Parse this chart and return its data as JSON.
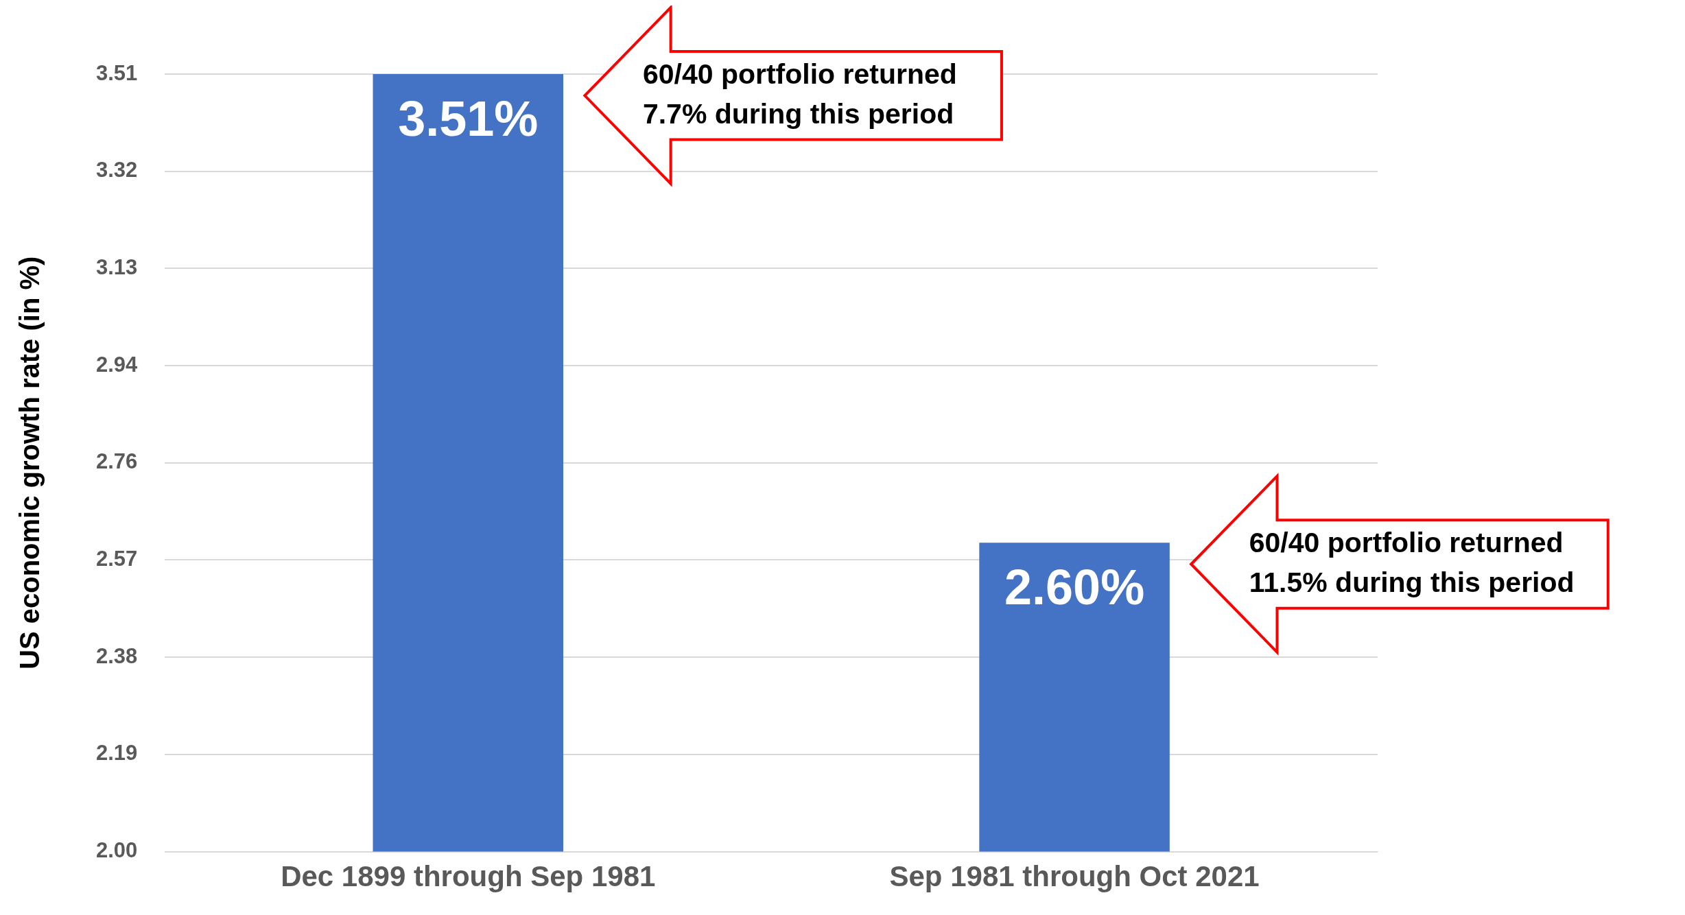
{
  "chart_data": {
    "type": "bar",
    "ylabel": "US economic growth rate (in %)",
    "categories": [
      "Dec 1899 through Sep 1981",
      "Sep 1981 through Oct 2021"
    ],
    "values": [
      3.51,
      2.6
    ],
    "color": "#4472c4",
    "value_labels": [
      "3.51%",
      "2.60%"
    ],
    "ylim": [
      2,
      3.51
    ],
    "yticks": [
      {
        "value": 2,
        "label": "2.00"
      },
      {
        "value": 2.18875,
        "label": "2.19"
      },
      {
        "value": 2.3775,
        "label": "2.38"
      },
      {
        "value": 2.56625,
        "label": "2.57"
      },
      {
        "value": 2.755,
        "label": "2.76"
      },
      {
        "value": 2.94375,
        "label": "2.94"
      },
      {
        "value": 3.1325,
        "label": "3.13"
      },
      {
        "value": 3.32125,
        "label": "3.32"
      },
      {
        "value": 3.51,
        "label": "3.51"
      }
    ],
    "grid": "y",
    "legend": false,
    "annotations": [
      "60/40 portfolio returned\n7.7% during this period",
      "60/40 portfolio returned\n11.5% during this period"
    ]
  }
}
